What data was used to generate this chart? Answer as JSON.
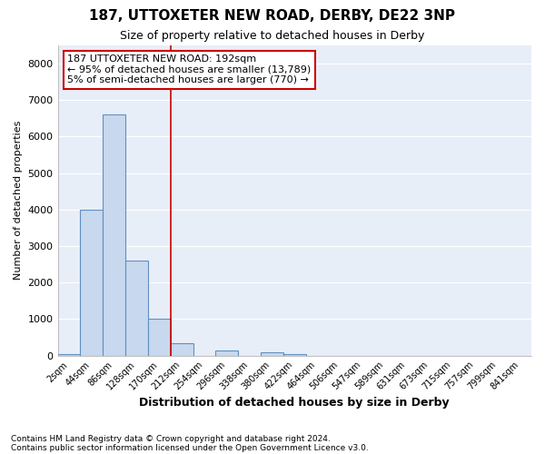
{
  "title1": "187, UTTOXETER NEW ROAD, DERBY, DE22 3NP",
  "title2": "Size of property relative to detached houses in Derby",
  "xlabel": "Distribution of detached houses by size in Derby",
  "ylabel": "Number of detached properties",
  "bin_labels": [
    "2sqm",
    "44sqm",
    "86sqm",
    "128sqm",
    "170sqm",
    "212sqm",
    "254sqm",
    "296sqm",
    "338sqm",
    "380sqm",
    "422sqm",
    "464sqm",
    "506sqm",
    "547sqm",
    "589sqm",
    "631sqm",
    "673sqm",
    "715sqm",
    "757sqm",
    "799sqm",
    "841sqm"
  ],
  "bar_values": [
    50,
    4000,
    6600,
    2600,
    1000,
    350,
    0,
    150,
    0,
    100,
    50,
    0,
    0,
    0,
    0,
    0,
    0,
    0,
    0,
    0,
    0
  ],
  "bar_color": "#c8d8ee",
  "bar_edge_color": "#6090c0",
  "vline_color": "#c0303030",
  "annotation_text": "187 UTTOXETER NEW ROAD: 192sqm\n← 95% of detached houses are smaller (13,789)\n5% of semi-detached houses are larger (770) →",
  "annotation_box_color": "white",
  "annotation_box_edge": "#cc0000",
  "footer1": "Contains HM Land Registry data © Crown copyright and database right 2024.",
  "footer2": "Contains public sector information licensed under the Open Government Licence v3.0.",
  "ylim": [
    0,
    8500
  ],
  "yticks": [
    0,
    1000,
    2000,
    3000,
    4000,
    5000,
    6000,
    7000,
    8000
  ],
  "background_color": "#ffffff",
  "plot_bg_color": "#e8eef8",
  "grid_color": "#ffffff"
}
